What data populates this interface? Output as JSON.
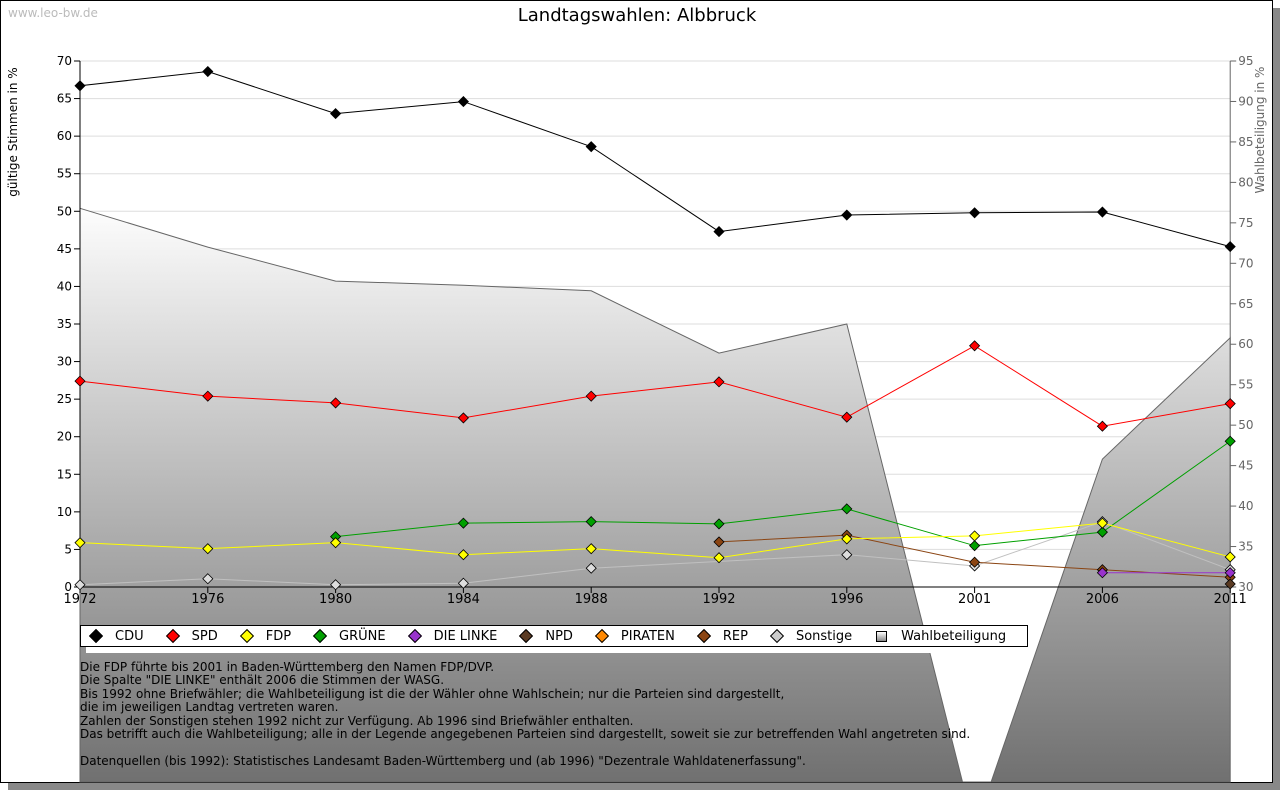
{
  "watermark": "www.leo-bw.de",
  "chart_data": {
    "type": "line",
    "title": "Landtagswahlen: Albbruck",
    "ylabel": "gültige Stimmen in %",
    "y2label": "Wahlbeteiligung in %",
    "xlabel": "",
    "categories": [
      "1972",
      "1976",
      "1980",
      "1984",
      "1988",
      "1992",
      "1996",
      "2001",
      "2006",
      "2011"
    ],
    "ylim": [
      0,
      70
    ],
    "y2lim": [
      30,
      95
    ],
    "yticks": [
      0,
      5,
      10,
      15,
      20,
      25,
      30,
      35,
      40,
      45,
      50,
      55,
      60,
      65,
      70
    ],
    "y2ticks": [
      30,
      35,
      40,
      45,
      50,
      55,
      60,
      65,
      70,
      75,
      80,
      85,
      90,
      95
    ],
    "grid": true,
    "legend_position": "bottom",
    "series": [
      {
        "name": "CDU",
        "color": "#000000",
        "values": [
          66.7,
          68.6,
          63.0,
          64.6,
          58.6,
          47.3,
          49.5,
          49.8,
          49.9,
          45.3
        ]
      },
      {
        "name": "SPD",
        "color": "#ff0000",
        "values": [
          27.4,
          25.4,
          24.5,
          22.5,
          25.4,
          27.3,
          22.6,
          32.1,
          21.4,
          24.4
        ]
      },
      {
        "name": "FDP",
        "color": "#ffff00",
        "values": [
          5.9,
          5.1,
          5.9,
          4.3,
          5.1,
          3.9,
          6.4,
          6.8,
          8.5,
          4.0
        ]
      },
      {
        "name": "GRÜNE",
        "color": "#00a000",
        "values": [
          null,
          null,
          6.7,
          8.5,
          8.7,
          8.4,
          10.4,
          5.5,
          7.3,
          19.4
        ]
      },
      {
        "name": "DIE LINKE",
        "color": "#9933cc",
        "values": [
          null,
          null,
          null,
          null,
          null,
          null,
          null,
          null,
          1.9,
          1.9
        ]
      },
      {
        "name": "NPD",
        "color": "#5a3a22",
        "values": [
          null,
          null,
          null,
          null,
          null,
          null,
          null,
          null,
          null,
          0.4
        ]
      },
      {
        "name": "PIRATEN",
        "color": "#ff8800",
        "values": [
          null,
          null,
          null,
          null,
          null,
          null,
          null,
          null,
          null,
          null
        ]
      },
      {
        "name": "REP",
        "color": "#8b4513",
        "values": [
          null,
          null,
          null,
          null,
          null,
          6.0,
          6.9,
          3.3,
          2.3,
          1.3
        ]
      },
      {
        "name": "Sonstige",
        "color": "#c0c0c0",
        "values": [
          0.3,
          1.1,
          0.3,
          0.5,
          2.5,
          null,
          4.3,
          2.8,
          8.7,
          2.3
        ]
      }
    ],
    "turnout": {
      "name": "Wahlbeteiligung",
      "axis": "right",
      "values": [
        76.8,
        72.0,
        67.8,
        67.3,
        66.6,
        58.9,
        62.5,
        0,
        45.8,
        60.8
      ]
    }
  },
  "notes": [
    "Die FDP führte bis 2001 in Baden-Württemberg den Namen FDP/DVP.",
    "Die Spalte \"DIE LINKE\" enthält 2006 die Stimmen der WASG.",
    "Bis 1992 ohne Briefwähler; die Wahlbeteiligung ist die der Wähler ohne Wahlschein; nur die Parteien sind dargestellt,",
    "die im jeweiligen Landtag vertreten waren.",
    "Zahlen der Sonstigen stehen 1992 nicht zur Verfügung. Ab 1996 sind Briefwähler enthalten.",
    "Das betrifft auch die Wahlbeteiligung; alle in der Legende angegebenen Parteien sind dargestellt, soweit sie zur betreffenden Wahl angetreten sind.",
    "",
    "Datenquellen (bis 1992): Statistisches Landesamt Baden-Württemberg und (ab 1996) \"Dezentrale Wahldatenerfassung\"."
  ]
}
